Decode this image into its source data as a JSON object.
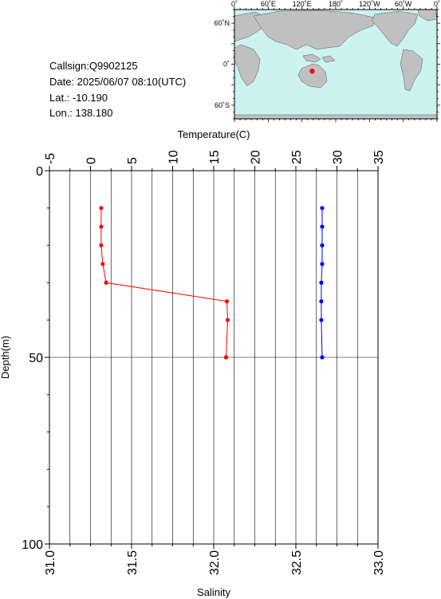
{
  "info": {
    "callsign": "Callsign:Q9902125",
    "date": "Date:  2025/06/07 08:10(UTC)",
    "lat": "Lat.:  -10.190",
    "lon": "Lon.:  138.180"
  },
  "map": {
    "top_ticks": [
      "0˚",
      "60˚E",
      "120˚E",
      "180˚",
      "120˚W",
      "60˚W",
      "0˚"
    ],
    "lat_ticks": [
      "60˚N",
      "0˚",
      "60˚S"
    ],
    "land_color": "#c0c0c0",
    "ocean_color": "#ccf2f2",
    "marker": {
      "lat": -10.19,
      "lon": 138.18,
      "color": "#ff0000"
    }
  },
  "chart_data": {
    "type": "line",
    "top_axis": {
      "label": "Temperature(C)",
      "range": [
        -5,
        35
      ],
      "ticks": [
        "-5",
        "0",
        "5",
        "10",
        "15",
        "20",
        "25",
        "30",
        "35"
      ]
    },
    "bottom_axis": {
      "label": "Salinity",
      "range": [
        31.0,
        33.0
      ],
      "ticks": [
        "31.0",
        "31.5",
        "32.0",
        "32.5",
        "33.0"
      ]
    },
    "y_axis": {
      "label": "Depth(m)",
      "range": [
        0,
        100
      ],
      "inverted": true,
      "ticks": [
        "0",
        "50",
        "100"
      ]
    },
    "grid": true,
    "series": [
      {
        "axis": "temperature",
        "color": "#ff0000",
        "points": [
          {
            "depth": 10,
            "value": 1.3
          },
          {
            "depth": 15,
            "value": 1.3
          },
          {
            "depth": 20,
            "value": 1.3
          },
          {
            "depth": 25,
            "value": 1.5
          },
          {
            "depth": 30,
            "value": 1.9
          },
          {
            "depth": 35,
            "value": 16.6
          },
          {
            "depth": 40,
            "value": 16.7
          },
          {
            "depth": 50,
            "value": 16.5
          }
        ]
      },
      {
        "axis": "salinity",
        "color": "#0000ff",
        "points": [
          {
            "depth": 10,
            "value": 32.66
          },
          {
            "depth": 15,
            "value": 32.66
          },
          {
            "depth": 20,
            "value": 32.66
          },
          {
            "depth": 25,
            "value": 32.66
          },
          {
            "depth": 30,
            "value": 32.655
          },
          {
            "depth": 35,
            "value": 32.655
          },
          {
            "depth": 40,
            "value": 32.655
          },
          {
            "depth": 50,
            "value": 32.66
          }
        ]
      }
    ]
  }
}
